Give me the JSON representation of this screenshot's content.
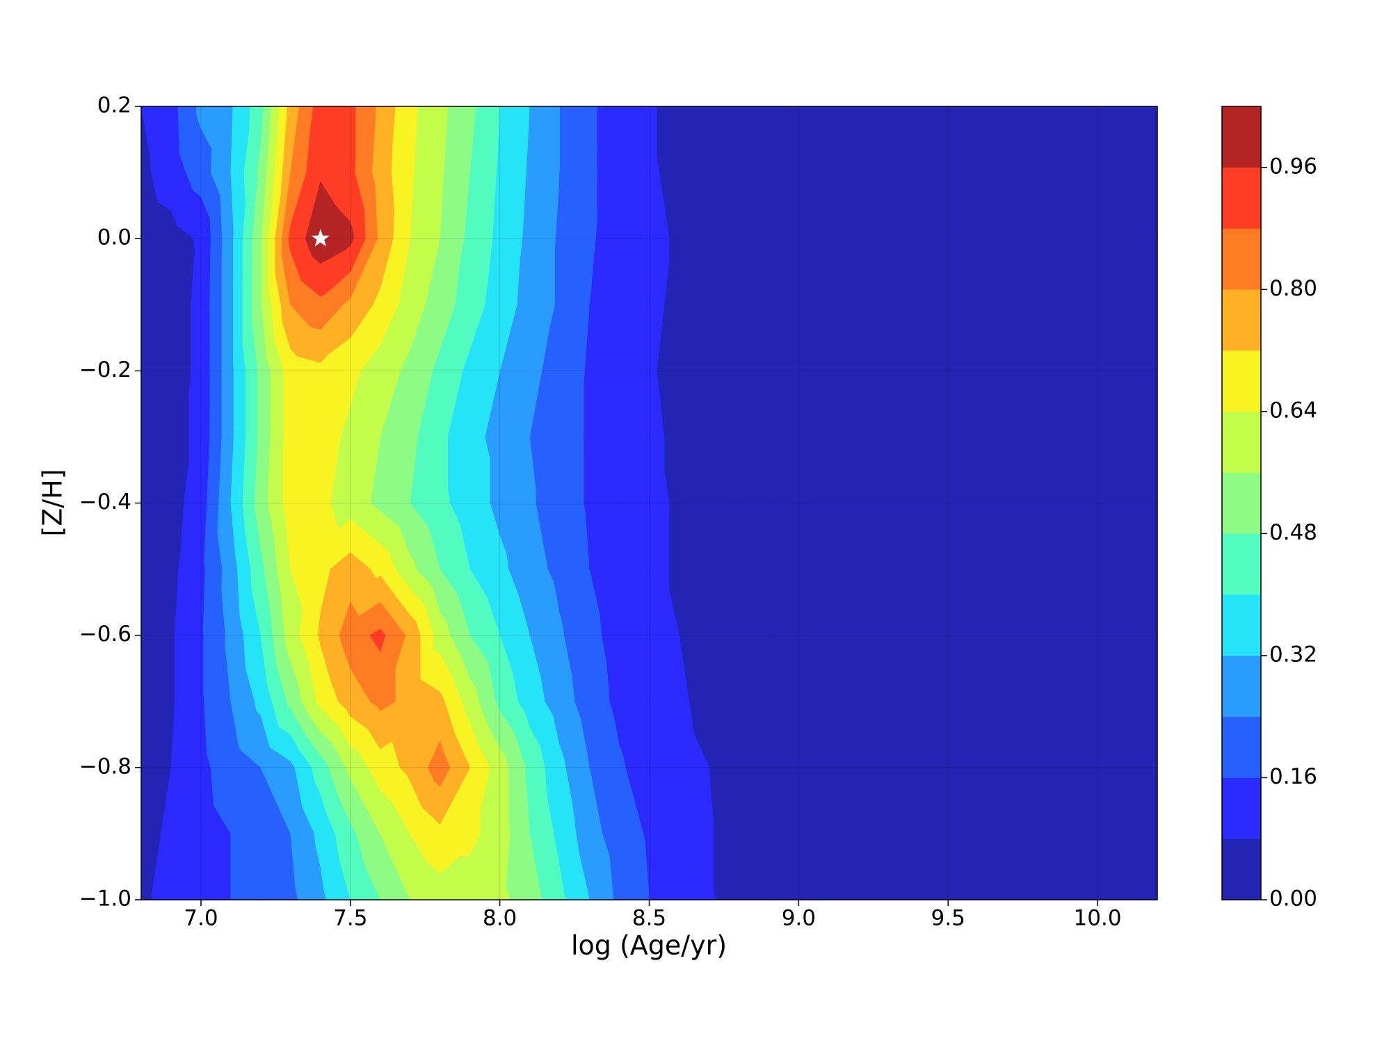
{
  "chart_data": {
    "type": "contourf",
    "x_label": "log (Age/yr)",
    "y_label": "[Z/H]",
    "x": [
      6.8,
      6.9,
      7.0,
      7.1,
      7.2,
      7.3,
      7.4,
      7.5,
      7.6,
      7.7,
      7.8,
      7.9,
      8.0,
      8.1,
      8.2,
      8.3,
      8.4,
      8.5,
      8.6,
      8.7,
      8.8,
      8.9,
      9.0,
      10.2
    ],
    "y": [
      -1.0,
      -0.9,
      -0.8,
      -0.7,
      -0.6,
      -0.5,
      -0.4,
      -0.3,
      -0.2,
      -0.1,
      0.0,
      0.1,
      0.2
    ],
    "z": [
      [
        0.06,
        0.12,
        0.14,
        0.16,
        0.18,
        0.22,
        0.3,
        0.4,
        0.48,
        0.56,
        0.6,
        0.6,
        0.58,
        0.52,
        0.42,
        0.32,
        0.22,
        0.16,
        0.12,
        0.09,
        0.04,
        0.01,
        0,
        0
      ],
      [
        0.04,
        0.1,
        0.13,
        0.16,
        0.18,
        0.24,
        0.34,
        0.46,
        0.56,
        0.64,
        0.7,
        0.66,
        0.6,
        0.48,
        0.38,
        0.27,
        0.2,
        0.15,
        0.11,
        0.09,
        0.02,
        0.01,
        0,
        0
      ],
      [
        0.03,
        0.08,
        0.14,
        0.2,
        0.24,
        0.3,
        0.44,
        0.58,
        0.68,
        0.74,
        0.84,
        0.72,
        0.6,
        0.46,
        0.34,
        0.24,
        0.17,
        0.12,
        0.1,
        0.08,
        0.02,
        0.01,
        0,
        0
      ],
      [
        0.03,
        0.07,
        0.15,
        0.24,
        0.34,
        0.5,
        0.66,
        0.76,
        0.82,
        0.78,
        0.74,
        0.6,
        0.46,
        0.36,
        0.28,
        0.2,
        0.14,
        0.1,
        0.09,
        0.06,
        0.02,
        0.01,
        0,
        0
      ],
      [
        0.03,
        0.07,
        0.15,
        0.26,
        0.4,
        0.6,
        0.73,
        0.84,
        0.9,
        0.78,
        0.6,
        0.48,
        0.4,
        0.32,
        0.25,
        0.18,
        0.13,
        0.1,
        0.08,
        0.05,
        0.02,
        0.01,
        0,
        0
      ],
      [
        0.03,
        0.06,
        0.14,
        0.28,
        0.46,
        0.64,
        0.7,
        0.76,
        0.7,
        0.58,
        0.48,
        0.4,
        0.34,
        0.27,
        0.22,
        0.16,
        0.12,
        0.1,
        0.07,
        0.04,
        0.02,
        0.01,
        0,
        0
      ],
      [
        0.03,
        0.05,
        0.12,
        0.32,
        0.52,
        0.68,
        0.66,
        0.6,
        0.54,
        0.48,
        0.42,
        0.36,
        0.3,
        0.25,
        0.2,
        0.15,
        0.12,
        0.1,
        0.07,
        0.04,
        0.02,
        0.01,
        0,
        0
      ],
      [
        0.03,
        0.05,
        0.1,
        0.3,
        0.5,
        0.68,
        0.68,
        0.62,
        0.56,
        0.5,
        0.42,
        0.34,
        0.3,
        0.24,
        0.2,
        0.15,
        0.12,
        0.1,
        0.06,
        0.03,
        0.02,
        0.01,
        0,
        0
      ],
      [
        0.03,
        0.04,
        0.1,
        0.3,
        0.5,
        0.68,
        0.7,
        0.66,
        0.6,
        0.54,
        0.46,
        0.38,
        0.32,
        0.26,
        0.21,
        0.15,
        0.12,
        0.09,
        0.05,
        0.03,
        0.02,
        0.01,
        0,
        0
      ],
      [
        0.03,
        0.04,
        0.1,
        0.3,
        0.55,
        0.8,
        0.86,
        0.78,
        0.7,
        0.6,
        0.52,
        0.44,
        0.36,
        0.29,
        0.23,
        0.16,
        0.12,
        0.1,
        0.06,
        0.03,
        0.02,
        0.01,
        0,
        0
      ],
      [
        0.03,
        0.05,
        0.09,
        0.3,
        0.55,
        0.9,
        1.02,
        0.98,
        0.78,
        0.64,
        0.56,
        0.46,
        0.38,
        0.3,
        0.23,
        0.17,
        0.12,
        0.1,
        0.07,
        0.03,
        0.02,
        0.01,
        0,
        0
      ],
      [
        0.06,
        0.12,
        0.2,
        0.32,
        0.5,
        0.8,
        0.95,
        0.9,
        0.76,
        0.65,
        0.57,
        0.48,
        0.39,
        0.31,
        0.24,
        0.17,
        0.13,
        0.09,
        0.06,
        0.03,
        0.02,
        0.01,
        0,
        0
      ],
      [
        0.08,
        0.13,
        0.26,
        0.31,
        0.45,
        0.75,
        0.92,
        0.9,
        0.78,
        0.66,
        0.58,
        0.5,
        0.4,
        0.32,
        0.24,
        0.17,
        0.13,
        0.09,
        0.05,
        0.03,
        0.02,
        0.01,
        0,
        0
      ]
    ],
    "levels": [
      0,
      0.08,
      0.16,
      0.24,
      0.32,
      0.4,
      0.48,
      0.56,
      0.64,
      0.72,
      0.8,
      0.88,
      0.96,
      1.04
    ],
    "colors": [
      "#2424b4",
      "#2a2aff",
      "#2660ff",
      "#2a9cff",
      "#26e4f8",
      "#52fcc0",
      "#8cfc84",
      "#c4fc4c",
      "#f8f424",
      "#ffb024",
      "#ff7c24",
      "#ff3c24",
      "#b42424"
    ],
    "xlim": [
      6.8,
      10.2
    ],
    "ylim": [
      -1.0,
      0.2
    ],
    "xticks": [
      {
        "value": 7,
        "label": "7.0"
      },
      7.5,
      {
        "value": 8,
        "label": "8.0"
      },
      8.5,
      {
        "value": 9,
        "label": "9.0"
      },
      9.5,
      {
        "value": 10,
        "label": "10.0"
      }
    ],
    "yticks": [
      {
        "value": -1,
        "label": "−1.0"
      },
      {
        "value": -0.8,
        "label": "−0.8"
      },
      {
        "value": -0.6,
        "label": "−0.6"
      },
      {
        "value": -0.4,
        "label": "−0.4"
      },
      {
        "value": -0.2,
        "label": "−0.2"
      },
      {
        "value": 0,
        "label": "0.0"
      },
      0.2
    ],
    "colorbar_ticks": [
      {
        "value": 0,
        "label": "0.00"
      },
      0.16,
      0.32,
      0.48,
      0.64,
      {
        "value": 0.8,
        "label": "0.80"
      },
      0.96
    ],
    "marker": {
      "x": 7.4,
      "y": 0,
      "symbol": "star",
      "color": "#ffffff"
    },
    "grid": true
  }
}
